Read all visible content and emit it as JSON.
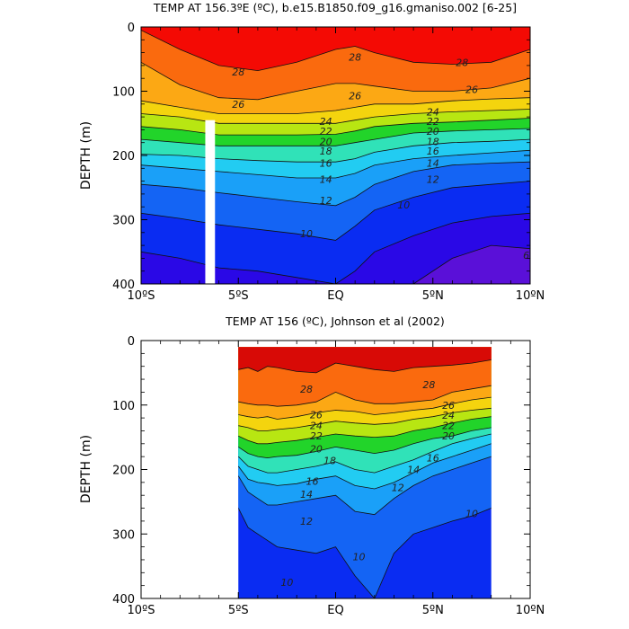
{
  "chart_data": [
    {
      "type": "contour",
      "title": "TEMP AT 156.3ºE (ºC), b.e15.B1850.f09_g16.gmaniso.002 [6-25]",
      "ylabel": "DEPTH (m)",
      "xlabel": "",
      "x_tick_labels": [
        "10ºS",
        "5ºS",
        "EQ",
        "5ºN",
        "10ºN"
      ],
      "x_tick_values": [
        -10,
        -5,
        0,
        5,
        10
      ],
      "y_tick_labels": [
        "0",
        "100",
        "200",
        "300",
        "400"
      ],
      "y_tick_values": [
        0,
        100,
        200,
        300,
        400
      ],
      "xlim": [
        -10,
        10
      ],
      "ylim": [
        400,
        0
      ],
      "x_data_extent": [
        -10,
        10
      ],
      "masked_gap": {
        "lat_range": [
          -6.7,
          -6.2
        ],
        "depth_range": [
          145,
          400
        ]
      },
      "contour_levels": [
        6,
        8,
        10,
        12,
        14,
        16,
        18,
        20,
        22,
        24,
        26,
        28
      ],
      "contour_labels": [
        {
          "text": "28",
          "lat": -5,
          "depth": 70
        },
        {
          "text": "28",
          "lat": 1,
          "depth": 47
        },
        {
          "text": "28",
          "lat": 6.5,
          "depth": 55
        },
        {
          "text": "26",
          "lat": -5,
          "depth": 120
        },
        {
          "text": "26",
          "lat": 1,
          "depth": 107
        },
        {
          "text": "26",
          "lat": 7,
          "depth": 97
        },
        {
          "text": "24",
          "lat": -0.5,
          "depth": 147
        },
        {
          "text": "24",
          "lat": 5,
          "depth": 132
        },
        {
          "text": "22",
          "lat": -0.5,
          "depth": 162
        },
        {
          "text": "22",
          "lat": 5,
          "depth": 147
        },
        {
          "text": "20",
          "lat": -0.5,
          "depth": 178
        },
        {
          "text": "20",
          "lat": 5,
          "depth": 162
        },
        {
          "text": "18",
          "lat": -0.5,
          "depth": 193
        },
        {
          "text": "18",
          "lat": 5,
          "depth": 178
        },
        {
          "text": "16",
          "lat": -0.5,
          "depth": 212
        },
        {
          "text": "16",
          "lat": 5,
          "depth": 193
        },
        {
          "text": "14",
          "lat": -0.5,
          "depth": 237
        },
        {
          "text": "14",
          "lat": 5,
          "depth": 212
        },
        {
          "text": "12",
          "lat": -0.5,
          "depth": 270
        },
        {
          "text": "12",
          "lat": 5,
          "depth": 237
        },
        {
          "text": "10",
          "lat": -1.5,
          "depth": 322
        },
        {
          "text": "10",
          "lat": 3.5,
          "depth": 277
        },
        {
          "text": "6",
          "lat": 9.8,
          "depth": 355
        }
      ],
      "isotherm_depths_m": {
        "lat": [
          -10,
          -8,
          -6,
          -4,
          -2,
          0,
          1,
          2,
          4,
          6,
          8,
          10
        ],
        "28": [
          5,
          35,
          60,
          68,
          55,
          35,
          30,
          40,
          55,
          58,
          55,
          35
        ],
        "26": [
          55,
          90,
          110,
          113,
          100,
          88,
          88,
          92,
          100,
          100,
          95,
          80
        ],
        "24": [
          115,
          125,
          135,
          135,
          135,
          130,
          125,
          120,
          120,
          115,
          112,
          110
        ],
        "22": [
          135,
          140,
          150,
          150,
          150,
          150,
          145,
          140,
          135,
          132,
          130,
          128
        ],
        "20": [
          155,
          160,
          168,
          168,
          168,
          167,
          162,
          155,
          150,
          148,
          145,
          142
        ],
        "18": [
          175,
          180,
          185,
          185,
          185,
          185,
          180,
          175,
          165,
          162,
          160,
          158
        ],
        "16": [
          198,
          200,
          205,
          208,
          210,
          210,
          205,
          195,
          185,
          180,
          178,
          175
        ],
        "14": [
          215,
          220,
          225,
          230,
          235,
          235,
          228,
          215,
          205,
          200,
          196,
          192
        ],
        "12": [
          245,
          250,
          258,
          265,
          272,
          278,
          265,
          245,
          225,
          215,
          212,
          210
        ],
        "10": [
          290,
          298,
          308,
          315,
          322,
          332,
          310,
          285,
          265,
          250,
          245,
          240
        ],
        "8": [
          350,
          360,
          375,
          380,
          390,
          400,
          380,
          350,
          325,
          305,
          295,
          290
        ],
        "6": [
          400,
          400,
          400,
          400,
          400,
          400,
          400,
          400,
          400,
          360,
          340,
          345
        ]
      }
    },
    {
      "type": "contour",
      "title": "TEMP AT 156 (ºC), Johnson et al (2002)",
      "ylabel": "DEPTH (m)",
      "xlabel": "",
      "x_tick_labels": [
        "10ºS",
        "5ºS",
        "EQ",
        "5ºN",
        "10ºN"
      ],
      "x_tick_values": [
        -10,
        -5,
        0,
        5,
        10
      ],
      "y_tick_labels": [
        "0",
        "100",
        "200",
        "300",
        "400"
      ],
      "y_tick_values": [
        0,
        100,
        200,
        300,
        400
      ],
      "xlim": [
        -10,
        10
      ],
      "ylim": [
        400,
        0
      ],
      "x_data_extent": [
        -5,
        8
      ],
      "depth_data_extent": [
        10,
        400
      ],
      "contour_levels": [
        10,
        12,
        14,
        16,
        18,
        20,
        22,
        24,
        26,
        28
      ],
      "contour_labels": [
        {
          "text": "28",
          "lat": -1.5,
          "depth": 75
        },
        {
          "text": "28",
          "lat": 4.8,
          "depth": 68
        },
        {
          "text": "26",
          "lat": -1,
          "depth": 115
        },
        {
          "text": "26",
          "lat": 5.8,
          "depth": 100
        },
        {
          "text": "24",
          "lat": -1,
          "depth": 132
        },
        {
          "text": "24",
          "lat": 5.8,
          "depth": 116
        },
        {
          "text": "22",
          "lat": -1,
          "depth": 148
        },
        {
          "text": "22",
          "lat": 5.8,
          "depth": 132
        },
        {
          "text": "20",
          "lat": -1,
          "depth": 168
        },
        {
          "text": "20",
          "lat": 5.8,
          "depth": 148
        },
        {
          "text": "18",
          "lat": -0.3,
          "depth": 186
        },
        {
          "text": "16",
          "lat": -1.2,
          "depth": 218
        },
        {
          "text": "16",
          "lat": 5,
          "depth": 182
        },
        {
          "text": "14",
          "lat": -1.5,
          "depth": 238
        },
        {
          "text": "14",
          "lat": 4,
          "depth": 200
        },
        {
          "text": "12",
          "lat": 3.2,
          "depth": 228
        },
        {
          "text": "12",
          "lat": -1.5,
          "depth": 280
        },
        {
          "text": "10",
          "lat": 1.2,
          "depth": 335
        },
        {
          "text": "10",
          "lat": 7,
          "depth": 268
        },
        {
          "text": "10",
          "lat": -2.5,
          "depth": 375
        }
      ],
      "isotherm_depths_m": {
        "lat": [
          -5,
          -4.5,
          -4,
          -3.5,
          -3,
          -2,
          -1,
          0,
          1,
          2,
          3,
          4,
          5,
          6,
          7,
          8
        ],
        "28": [
          45,
          42,
          48,
          40,
          42,
          48,
          50,
          35,
          40,
          45,
          48,
          42,
          40,
          38,
          35,
          30
        ],
        "26": [
          95,
          98,
          100,
          100,
          102,
          100,
          95,
          80,
          92,
          98,
          98,
          95,
          92,
          80,
          75,
          70
        ],
        "24": [
          115,
          118,
          120,
          118,
          122,
          118,
          112,
          108,
          110,
          115,
          112,
          108,
          105,
          98,
          92,
          88
        ],
        "22": [
          132,
          135,
          140,
          140,
          138,
          135,
          130,
          125,
          128,
          130,
          128,
          122,
          118,
          112,
          108,
          105
        ],
        "20": [
          148,
          155,
          160,
          160,
          158,
          155,
          150,
          145,
          148,
          150,
          148,
          140,
          135,
          128,
          122,
          118
        ],
        "18": [
          165,
          175,
          180,
          182,
          180,
          178,
          172,
          165,
          170,
          175,
          170,
          160,
          152,
          148,
          140,
          135
        ],
        "16": [
          180,
          195,
          200,
          205,
          205,
          200,
          195,
          188,
          200,
          205,
          195,
          185,
          172,
          160,
          152,
          145
        ],
        "14": [
          195,
          215,
          220,
          222,
          225,
          222,
          215,
          210,
          225,
          230,
          220,
          205,
          190,
          180,
          170,
          160
        ],
        "12": [
          210,
          235,
          245,
          255,
          255,
          250,
          245,
          240,
          265,
          270,
          245,
          225,
          210,
          200,
          190,
          180
        ],
        "10": [
          260,
          290,
          300,
          310,
          320,
          325,
          330,
          320,
          365,
          400,
          330,
          300,
          290,
          280,
          272,
          260
        ]
      }
    }
  ]
}
